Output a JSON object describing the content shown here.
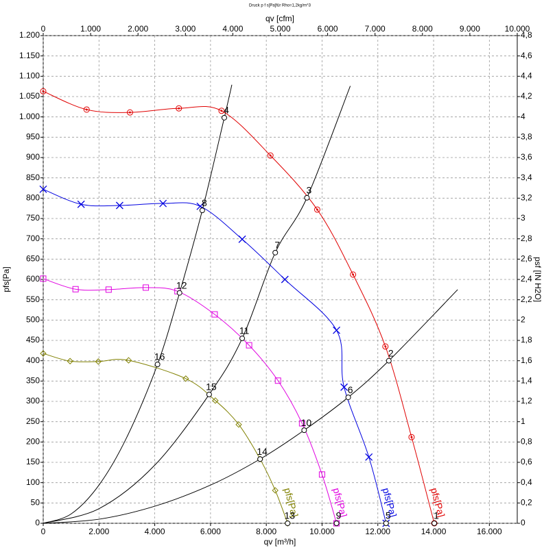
{
  "chart_data": {
    "type": "line",
    "title": "Druck p f s[Pa]für Rho=1,2kg/m^3",
    "x_label": "qv [m³/h]",
    "x2_label": "qv [cfm]",
    "y_label": "pfs[Pa]",
    "y2_label": "psf [IN H2O]",
    "xlim": [
      0,
      17000
    ],
    "xticks": [
      0,
      {
        "value": 2000,
        "label": "2.000"
      },
      {
        "value": 4000,
        "label": "4.000"
      },
      {
        "value": 6000,
        "label": "6.000"
      },
      {
        "value": 8000,
        "label": "8.000"
      },
      {
        "value": 10000,
        "label": "10.000"
      },
      {
        "value": 12000,
        "label": "12.000"
      },
      {
        "value": 14000,
        "label": "14.000"
      },
      {
        "value": 16000,
        "label": "16.000"
      }
    ],
    "x2lim": [
      0,
      10000
    ],
    "x2ticks": [
      0,
      {
        "value": 1000,
        "label": "1.000"
      },
      {
        "value": 2000,
        "label": "2.000"
      },
      {
        "value": 3000,
        "label": "3.000"
      },
      {
        "value": 4000,
        "label": "4.000"
      },
      {
        "value": 5000,
        "label": "5.000"
      },
      {
        "value": 6000,
        "label": "6.000"
      },
      {
        "value": 7000,
        "label": "7.000"
      },
      {
        "value": 8000,
        "label": "8.000"
      },
      {
        "value": 9000,
        "label": "9.000"
      },
      {
        "value": 10000,
        "label": "10.000"
      }
    ],
    "ylim": [
      0,
      1200
    ],
    "yticks": [
      0,
      50,
      100,
      150,
      200,
      250,
      300,
      350,
      400,
      450,
      500,
      550,
      600,
      650,
      700,
      750,
      800,
      850,
      900,
      950,
      {
        "value": 1000,
        "label": "1.000"
      },
      {
        "value": 1050,
        "label": "1.050"
      },
      {
        "value": 1100,
        "label": "1.100"
      },
      {
        "value": 1150,
        "label": "1.150"
      },
      {
        "value": 1200,
        "label": "1.200"
      }
    ],
    "y2lim": [
      0,
      4.8
    ],
    "y2ticks": [
      0,
      {
        "value": 0.2,
        "label": "0,2"
      },
      {
        "value": 0.4,
        "label": "0,4"
      },
      {
        "value": 0.6,
        "label": "0,6"
      },
      {
        "value": 0.8,
        "label": "0,8"
      },
      1,
      {
        "value": 1.2,
        "label": "1,2"
      },
      {
        "value": 1.4,
        "label": "1,4"
      },
      {
        "value": 1.6,
        "label": "1,6"
      },
      {
        "value": 1.8,
        "label": "1,8"
      },
      2,
      {
        "value": 2.2,
        "label": "2,2"
      },
      {
        "value": 2.4,
        "label": "2,4"
      },
      {
        "value": 2.6,
        "label": "2,6"
      },
      {
        "value": 2.8,
        "label": "2,8"
      },
      3,
      {
        "value": 3.2,
        "label": "3,2"
      },
      {
        "value": 3.4,
        "label": "3,4"
      },
      {
        "value": 3.6,
        "label": "3,6"
      },
      {
        "value": 3.8,
        "label": "3,8"
      },
      4,
      {
        "value": 4.2,
        "label": "4,2"
      },
      {
        "value": 4.4,
        "label": "4,4"
      },
      {
        "value": 4.6,
        "label": "4,6"
      },
      {
        "value": 4.8,
        "label": "4,8"
      }
    ],
    "grid": true,
    "series": [
      {
        "name": "pfs[Pa]",
        "color": "#e00000",
        "marker": "circle",
        "x": [
          0,
          1556,
          3111,
          4864,
          6395,
          8148,
          9827,
          11111,
          12272,
          13210,
          14025
        ],
        "values": [
          1063,
          1018,
          1011,
          1021,
          1015,
          905,
          772,
          612,
          435,
          212,
          0
        ]
      },
      {
        "name": "pfs[Pa]",
        "color": "#0000e0",
        "marker": "x",
        "x": [
          0,
          1358,
          2741,
          4296,
          5630,
          7136,
          8667,
          10519,
          10790,
          11679,
          12296
        ],
        "values": [
          822,
          785,
          782,
          787,
          780,
          699,
          600,
          475,
          335,
          163,
          0
        ]
      },
      {
        "name": "pfs[Pa]",
        "color": "#e000e0",
        "marker": "square",
        "x": [
          0,
          1160,
          2346,
          3679,
          4815,
          6148,
          7383,
          8420,
          9284,
          9999,
          10519
        ],
        "values": [
          602,
          576,
          575,
          580,
          571,
          514,
          438,
          351,
          246,
          120,
          0
        ]
      },
      {
        "name": "pfs[Pa]",
        "color": "#808000",
        "marker": "diamond",
        "x": [
          0,
          963,
          1975,
          3062,
          5111,
          6173,
          7012,
          7778,
          8321,
          8765
        ],
        "values": [
          418,
          399,
          398,
          401,
          356,
          302,
          243,
          158,
          81,
          0
        ]
      }
    ],
    "system_curves": [
      {
        "color": "#000000",
        "x": [
          0,
          1000,
          2000,
          3000,
          4099,
          4889,
          5704,
          6494,
          6765
        ],
        "values": [
          0,
          23,
          94,
          212,
          391,
          567,
          770,
          998,
          1079
        ]
      },
      {
        "color": "#000000",
        "x": [
          0,
          2000,
          4000,
          5951,
          7136,
          8321,
          9457,
          11012
        ],
        "values": [
          0,
          36,
          143,
          317,
          455,
          666,
          801,
          1076
        ]
      },
      {
        "color": "#000000",
        "x": [
          0,
          2000,
          4000,
          6000,
          7778,
          9358,
          10938,
          12395,
          14864
        ],
        "values": [
          0,
          10,
          42,
          94,
          158,
          229,
          310,
          400,
          575
        ]
      }
    ],
    "points": [
      {
        "label": "1",
        "x": 14025,
        "y": 0
      },
      {
        "label": "2",
        "x": 12395,
        "y": 400
      },
      {
        "label": "3",
        "x": 9457,
        "y": 801
      },
      {
        "label": "4",
        "x": 6494,
        "y": 998
      },
      {
        "label": "5",
        "x": 12296,
        "y": 0
      },
      {
        "label": "6",
        "x": 10938,
        "y": 310
      },
      {
        "label": "7",
        "x": 8321,
        "y": 666
      },
      {
        "label": "8",
        "x": 5704,
        "y": 770
      },
      {
        "label": "9",
        "x": 10519,
        "y": 0
      },
      {
        "label": "10",
        "x": 9358,
        "y": 229
      },
      {
        "label": "11",
        "x": 7136,
        "y": 455
      },
      {
        "label": "12",
        "x": 4889,
        "y": 567
      },
      {
        "label": "13",
        "x": 8765,
        "y": 0
      },
      {
        "label": "14",
        "x": 7778,
        "y": 158
      },
      {
        "label": "15",
        "x": 5951,
        "y": 317
      },
      {
        "label": "16",
        "x": 4099,
        "y": 391
      }
    ]
  }
}
